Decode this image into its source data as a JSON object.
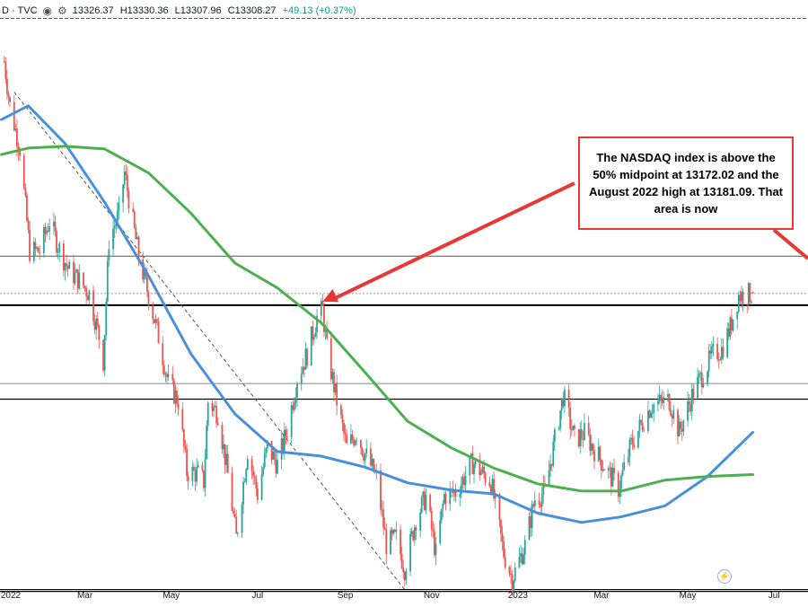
{
  "header": {
    "symbol": "D · TVC",
    "eye_icon": "eye-icon",
    "settings_icon": "gear-icon",
    "open": "13326.37",
    "high": "H13330.36",
    "low": "L13307.96",
    "close": "C13308.27",
    "change": "+49.13 (+0.37%)"
  },
  "annotation": {
    "text": "The NASDAQ index is above the 50% midpoint at 13172.02 and the August 2022 high at 13181.09.  That area is now"
  },
  "lightning_icon": "lightning-icon",
  "colors": {
    "up": "#26a69a",
    "down": "#ef5350",
    "ma_blue": "#4a90d9",
    "ma_green": "#4caf50",
    "arrow": "#e53935"
  },
  "chart_data": {
    "type": "candlestick",
    "x_tick_labels": [
      "2022",
      "Mar",
      "May",
      "Jul",
      "Sep",
      "Nov",
      "2023",
      "Mar",
      "May",
      "Jul"
    ],
    "series": [
      {
        "kind": "close",
        "points": [
          [
            "2022-01-03",
            15832
          ],
          [
            "2022-01-07",
            15350
          ],
          [
            "2022-01-14",
            14890
          ],
          [
            "2022-01-21",
            13770
          ],
          [
            "2022-01-28",
            13770
          ],
          [
            "2022-02-04",
            14100
          ],
          [
            "2022-02-11",
            13790
          ],
          [
            "2022-02-18",
            13550
          ],
          [
            "2022-02-24",
            13470
          ],
          [
            "2022-03-04",
            13310
          ],
          [
            "2022-03-11",
            12840
          ],
          [
            "2022-03-14",
            12580
          ],
          [
            "2022-03-18",
            13890
          ],
          [
            "2022-03-25",
            14170
          ],
          [
            "2022-03-29",
            14620
          ],
          [
            "2022-04-08",
            13710
          ],
          [
            "2022-04-14",
            13350
          ],
          [
            "2022-04-22",
            12840
          ],
          [
            "2022-04-29",
            12330
          ],
          [
            "2022-05-06",
            12140
          ],
          [
            "2022-05-12",
            11370
          ],
          [
            "2022-05-20",
            11350
          ],
          [
            "2022-05-24",
            11260
          ],
          [
            "2022-05-27",
            12130
          ],
          [
            "2022-06-03",
            12010
          ],
          [
            "2022-06-10",
            11340
          ],
          [
            "2022-06-16",
            10650
          ],
          [
            "2022-06-24",
            11610
          ],
          [
            "2022-07-01",
            11130
          ],
          [
            "2022-07-08",
            11640
          ],
          [
            "2022-07-15",
            11450
          ],
          [
            "2022-07-22",
            11830
          ],
          [
            "2022-07-29",
            12390
          ],
          [
            "2022-08-05",
            12650
          ],
          [
            "2022-08-12",
            13050
          ],
          [
            "2022-08-16",
            13130
          ],
          [
            "2022-08-19",
            12700
          ],
          [
            "2022-08-26",
            12140
          ],
          [
            "2022-09-02",
            11630
          ],
          [
            "2022-09-09",
            11800
          ],
          [
            "2022-09-13",
            11630
          ],
          [
            "2022-09-23",
            11310
          ],
          [
            "2022-09-30",
            10580
          ],
          [
            "2022-10-07",
            10650
          ],
          [
            "2022-10-13",
            10320
          ],
          [
            "2022-10-21",
            10860
          ],
          [
            "2022-10-28",
            11100
          ],
          [
            "2022-11-04",
            10480
          ],
          [
            "2022-11-10",
            11110
          ],
          [
            "2022-11-18",
            11150
          ],
          [
            "2022-11-30",
            11470
          ],
          [
            "2022-12-13",
            11260
          ],
          [
            "2022-12-22",
            10480
          ],
          [
            "2022-12-28",
            10210
          ],
          [
            "2023-01-06",
            10570
          ],
          [
            "2023-01-13",
            11080
          ],
          [
            "2023-01-20",
            11140
          ],
          [
            "2023-02-02",
            12200
          ],
          [
            "2023-02-10",
            11720
          ],
          [
            "2023-02-17",
            11790
          ],
          [
            "2023-03-02",
            11460
          ],
          [
            "2023-03-13",
            11190
          ],
          [
            "2023-03-22",
            11670
          ],
          [
            "2023-04-05",
            12090
          ],
          [
            "2023-04-18",
            12150
          ],
          [
            "2023-04-25",
            11800
          ],
          [
            "2023-05-05",
            12240
          ],
          [
            "2023-05-19",
            12650
          ],
          [
            "2023-05-25",
            12700
          ],
          [
            "2023-05-31",
            12940
          ],
          [
            "2023-06-06",
            13290
          ],
          [
            "2023-06-13",
            13300
          ],
          [
            "2023-06-16",
            13308
          ]
        ]
      },
      {
        "kind": "ma_blue",
        "name": "",
        "points": [
          [
            "2022-01-01",
            15200
          ],
          [
            "2022-01-20",
            15350
          ],
          [
            "2022-02-15",
            14940
          ],
          [
            "2022-03-15",
            14300
          ],
          [
            "2022-04-15",
            13500
          ],
          [
            "2022-05-15",
            12650
          ],
          [
            "2022-06-15",
            12000
          ],
          [
            "2022-07-15",
            11590
          ],
          [
            "2022-08-15",
            11540
          ],
          [
            "2022-09-15",
            11420
          ],
          [
            "2022-10-15",
            11250
          ],
          [
            "2022-11-15",
            11170
          ],
          [
            "2022-12-15",
            11130
          ],
          [
            "2023-01-15",
            10920
          ],
          [
            "2023-02-15",
            10820
          ],
          [
            "2023-03-15",
            10880
          ],
          [
            "2023-04-15",
            11000
          ],
          [
            "2023-05-15",
            11320
          ],
          [
            "2023-06-16",
            11800
          ]
        ]
      },
      {
        "kind": "ma_green",
        "name": "",
        "points": [
          [
            "2022-01-01",
            14820
          ],
          [
            "2022-01-20",
            14890
          ],
          [
            "2022-02-15",
            14910
          ],
          [
            "2022-03-15",
            14880
          ],
          [
            "2022-04-15",
            14620
          ],
          [
            "2022-05-15",
            14180
          ],
          [
            "2022-06-15",
            13640
          ],
          [
            "2022-07-15",
            13370
          ],
          [
            "2022-08-15",
            12990
          ],
          [
            "2022-09-15",
            12450
          ],
          [
            "2022-10-15",
            11920
          ],
          [
            "2022-11-15",
            11630
          ],
          [
            "2022-12-15",
            11410
          ],
          [
            "2023-01-15",
            11240
          ],
          [
            "2023-02-15",
            11160
          ],
          [
            "2023-03-15",
            11160
          ],
          [
            "2023-04-15",
            11280
          ],
          [
            "2023-05-15",
            11320
          ],
          [
            "2023-06-16",
            11340
          ]
        ]
      }
    ],
    "horizontal_levels": [
      16300,
      13715,
      13181.09,
      13308.27,
      12330,
      12160,
      10090,
      10070
    ],
    "ylim": [
      9900,
      16500
    ],
    "xlim": [
      "2021-12-31",
      "2023-07-25"
    ]
  }
}
